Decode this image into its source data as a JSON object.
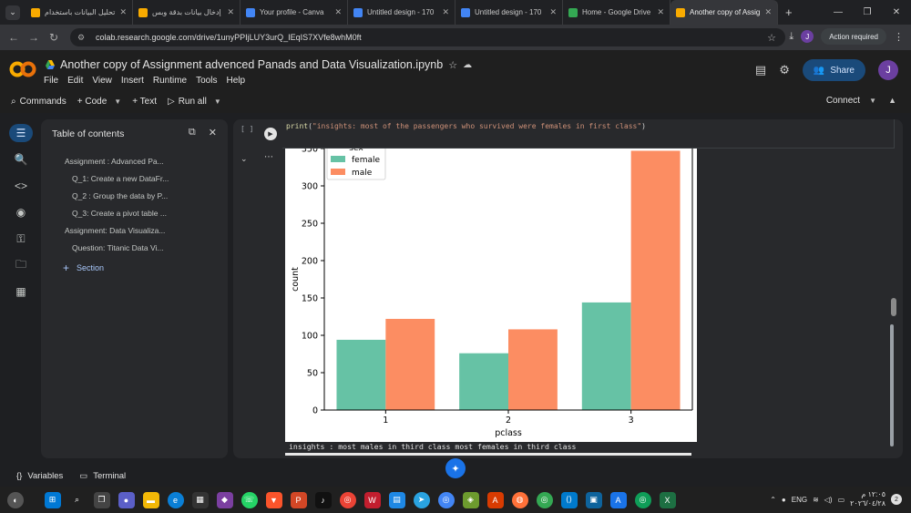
{
  "browser": {
    "tabs": [
      {
        "title": "تحليل البيانات باستخدام",
        "icon": "s-icon",
        "color": "#f9ab00"
      },
      {
        "title": "إدخال بيانات بدقة وبس",
        "icon": "s-icon",
        "color": "#f9ab00"
      },
      {
        "title": "Your profile - Canva",
        "icon": "canva-icon",
        "color": "#4285f4"
      },
      {
        "title": "Untitled design - 170",
        "icon": "canva-icon",
        "color": "#4285f4"
      },
      {
        "title": "Untitled design - 170",
        "icon": "canva-icon",
        "color": "#4285f4"
      },
      {
        "title": "Home - Google Drive",
        "icon": "drive-icon",
        "color": "#34a853"
      },
      {
        "title": "Another copy of Assig",
        "icon": "colab-icon",
        "color": "#f9ab00"
      }
    ],
    "url": "colab.research.google.com/drive/1unyPPIjLUY3urQ_IEqIS7XVfe8whM0ft",
    "action_required": "Action required",
    "profile_initial": "J"
  },
  "colab": {
    "notebook_title": "Another copy of Assignment advenced Panads and Data Visualization.ipynb",
    "menu": [
      "File",
      "Edit",
      "View",
      "Insert",
      "Runtime",
      "Tools",
      "Help"
    ],
    "share_label": "Share",
    "user_initial": "J",
    "toolbar": {
      "commands": "Commands",
      "code": "+ Code",
      "text": "+ Text",
      "run_all": "Run all",
      "connect": "Connect"
    }
  },
  "toc": {
    "title": "Table of contents",
    "items": [
      {
        "label": "Assignment : Advanced Pa..."
      },
      {
        "label": "Q_1: Create a new DataFr..."
      },
      {
        "label": "Q_2 : Group the data by P..."
      },
      {
        "label": "Q_3: Create a pivot table ..."
      },
      {
        "label": "Assignment: Data Visualiza..."
      },
      {
        "label": "Question: Titanic Data Vi..."
      }
    ],
    "section_label": "Section"
  },
  "cell": {
    "bracket": "[ ]",
    "code_fn": "print",
    "code_str": "\"insights: most of the passengers who survived were females in first class\"",
    "output_text": "insights : most males in third class  most females in third class"
  },
  "chart_data": {
    "type": "bar",
    "categories": [
      "1",
      "2",
      "3"
    ],
    "series": [
      {
        "name": "female",
        "values": [
          94,
          76,
          144
        ],
        "color": "#66c2a5"
      },
      {
        "name": "male",
        "values": [
          122,
          108,
          347
        ],
        "color": "#fc8d62"
      }
    ],
    "legend_title": "sex",
    "xlabel": "pclass",
    "ylabel": "count",
    "yticks": [
      0,
      50,
      100,
      150,
      200,
      250,
      300,
      350
    ],
    "ylim": [
      0,
      350
    ],
    "legend_position": "top-left",
    "grid": false
  },
  "bottom": {
    "variables": "Variables",
    "terminal": "Terminal"
  },
  "taskbar": {
    "lang": "ENG",
    "time": "١٢:٠٥ م",
    "date": "٢٠٢٦/٠٤/٢٨",
    "notifications": "2"
  }
}
